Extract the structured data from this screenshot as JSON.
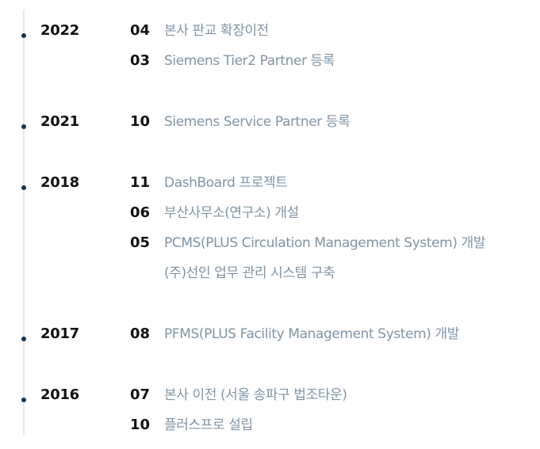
{
  "timeline": [
    {
      "year": "2022",
      "entries": [
        {
          "month": "04",
          "text": "본사 판교 확장이전"
        },
        {
          "month": "03",
          "text": "Siemens Tier2 Partner 등록"
        }
      ]
    },
    {
      "year": "2021",
      "entries": [
        {
          "month": "10",
          "text": "Siemens Service Partner 등록"
        }
      ]
    },
    {
      "year": "2018",
      "entries": [
        {
          "month": "11",
          "text": "DashBoard 프로젝트"
        },
        {
          "month": "06",
          "text": "부산사무소(연구소) 개설"
        },
        {
          "month": "05",
          "text": "PCMS(PLUS Circulation Management System) 개발"
        },
        {
          "month": "",
          "text": "(주)선인 업무 관리 시스템 구축"
        }
      ]
    },
    {
      "year": "2017",
      "entries": [
        {
          "month": "08",
          "text": "PFMS(PLUS Facility Management System) 개발"
        }
      ]
    },
    {
      "year": "2016",
      "entries": [
        {
          "month": "07",
          "text": "본사 이전 (서울 송파구 법조타운)"
        },
        {
          "month": "10",
          "text": "플러스프로 설립"
        }
      ]
    }
  ],
  "colors": {
    "dot": "#133552",
    "line": "#e6e9ec",
    "year_text": "#111111",
    "desc_text": "#8194a5"
  }
}
